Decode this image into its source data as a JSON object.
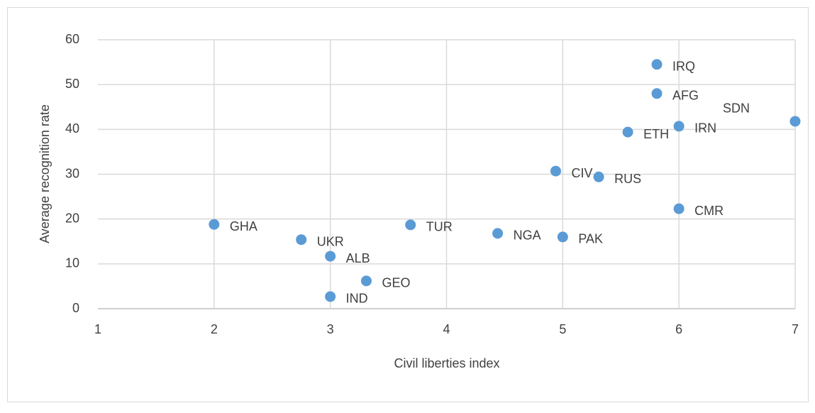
{
  "chart_data": {
    "type": "scatter",
    "x_label": "Civil liberties index",
    "y_label": "Average recognition rate",
    "labels": [
      "IRQ",
      "AFG",
      "SDN",
      "IRN",
      "ETH",
      "CIV",
      "RUS",
      "CMR",
      "GHA",
      "UKR",
      "TUR",
      "NGA",
      "PAK",
      "ALB",
      "GEO",
      "IND"
    ],
    "x": [
      5.81,
      5.81,
      7,
      6,
      5.56,
      4.94,
      5.31,
      6,
      2,
      2.75,
      3.69,
      4.44,
      5,
      3,
      3.31,
      3
    ],
    "values": [
      54.5,
      48,
      41.8,
      40.7,
      39.4,
      30.7,
      29.4,
      22.3,
      18.8,
      15.4,
      18.7,
      16.8,
      16,
      11.7,
      6.2,
      2.7
    ],
    "color": "#5b9bd5",
    "xlim": [
      1,
      7
    ],
    "xticks": [
      1,
      2,
      3,
      4,
      5,
      6,
      7
    ],
    "ylim": [
      0,
      60
    ],
    "yticks": [
      0,
      10,
      20,
      30,
      40,
      50,
      60
    ],
    "grid": true
  }
}
